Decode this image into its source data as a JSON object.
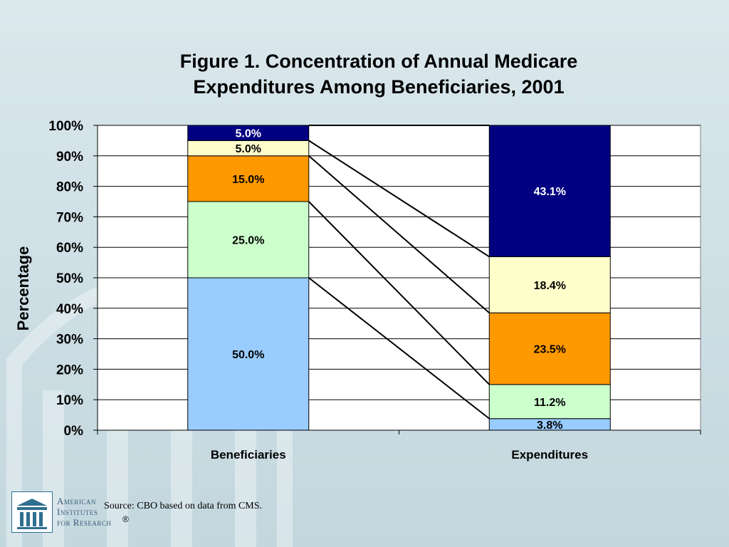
{
  "chart_data": {
    "type": "bar",
    "stacked": true,
    "title": "Figure 1. Concentration of Annual Medicare Expenditures Among Beneficiaries, 2001",
    "title_lines": [
      "Figure 1. Concentration of Annual Medicare",
      "Expenditures Among Beneficiaries, 2001"
    ],
    "ylabel": "Percentage",
    "xlabel": "",
    "ylim": [
      0,
      100
    ],
    "y_ticks": [
      "0%",
      "10%",
      "20%",
      "30%",
      "40%",
      "50%",
      "60%",
      "70%",
      "80%",
      "90%",
      "100%"
    ],
    "grid": true,
    "categories": [
      "Beneficiaries",
      "Expenditures"
    ],
    "series": [
      {
        "values": [
          50.0,
          3.8
        ],
        "labels": [
          "50.0%",
          "3.8%"
        ],
        "color": "#99ccff"
      },
      {
        "values": [
          25.0,
          11.2
        ],
        "labels": [
          "25.0%",
          "11.2%"
        ],
        "color": "#ccffcc"
      },
      {
        "values": [
          15.0,
          23.5
        ],
        "labels": [
          "15.0%",
          "23.5%"
        ],
        "color": "#ff9900"
      },
      {
        "values": [
          5.0,
          18.4
        ],
        "labels": [
          "5.0%",
          "18.4%"
        ],
        "color": "#ffffcc"
      },
      {
        "values": [
          5.0,
          43.1
        ],
        "labels": [
          "5.0%",
          "43.1%"
        ],
        "color": "#000080"
      }
    ],
    "connector_lines": true
  },
  "footer": {
    "source": "Source: CBO based on data from CMS.",
    "org_lines": [
      "American",
      "Institutes",
      "for Research"
    ],
    "org_registered": "®"
  }
}
